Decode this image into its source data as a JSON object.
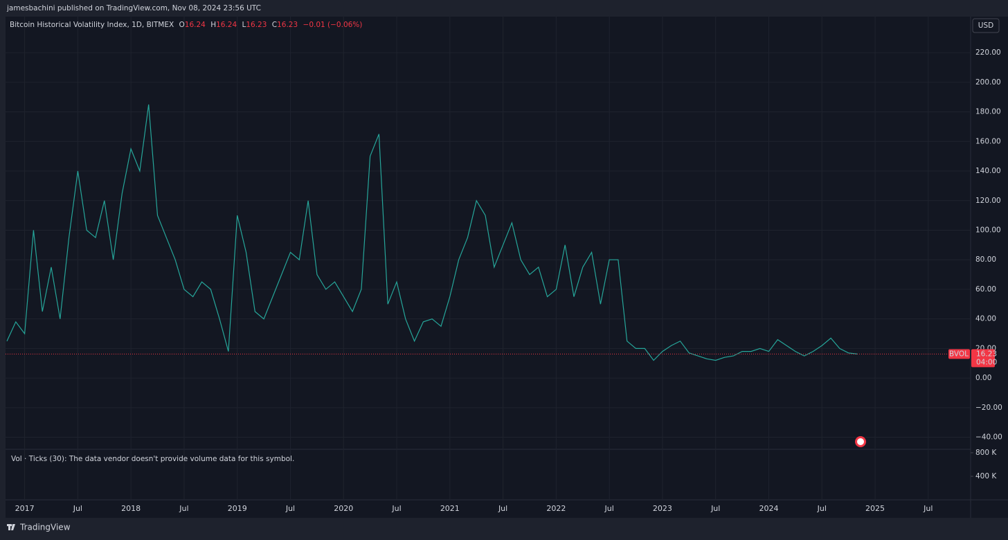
{
  "header": {
    "publisher": "jamesbachini published on TradingView.com, Nov 08, 2024 23:56 UTC",
    "currency_button": "USD",
    "footer_brand": "TradingView"
  },
  "legend": {
    "symbol": "Bitcoin Historical Volatility Index, 1D, BITMEX",
    "open_label": "O",
    "open": 16.24,
    "high_label": "H",
    "high": 16.24,
    "low_label": "L",
    "low": 16.23,
    "close_label": "C",
    "close": 16.23,
    "change": "−0.01 (−0.06%)"
  },
  "chart_data": {
    "type": "line",
    "x": [
      "2016-11",
      "2016-12",
      "2017-01",
      "2017-02",
      "2017-03",
      "2017-04",
      "2017-05",
      "2017-06",
      "2017-07",
      "2017-08",
      "2017-09",
      "2017-10",
      "2017-11",
      "2017-12",
      "2018-01",
      "2018-02",
      "2018-03",
      "2018-04",
      "2018-05",
      "2018-06",
      "2018-07",
      "2018-08",
      "2018-09",
      "2018-10",
      "2018-11",
      "2018-12",
      "2019-01",
      "2019-02",
      "2019-03",
      "2019-04",
      "2019-05",
      "2019-06",
      "2019-07",
      "2019-08",
      "2019-09",
      "2019-10",
      "2019-11",
      "2019-12",
      "2020-01",
      "2020-02",
      "2020-03",
      "2020-04",
      "2020-05",
      "2020-06",
      "2020-07",
      "2020-08",
      "2020-09",
      "2020-10",
      "2020-11",
      "2020-12",
      "2021-01",
      "2021-02",
      "2021-03",
      "2021-04",
      "2021-05",
      "2021-06",
      "2021-07",
      "2021-08",
      "2021-09",
      "2021-10",
      "2021-11",
      "2021-12",
      "2022-01",
      "2022-02",
      "2022-03",
      "2022-04",
      "2022-05",
      "2022-06",
      "2022-07",
      "2022-08",
      "2022-09",
      "2022-10",
      "2022-11",
      "2022-12",
      "2023-01",
      "2023-02",
      "2023-03",
      "2023-04",
      "2023-05",
      "2023-06",
      "2023-07",
      "2023-08",
      "2023-09",
      "2023-10",
      "2023-11",
      "2023-12",
      "2024-01",
      "2024-02",
      "2024-03",
      "2024-04",
      "2024-05",
      "2024-06",
      "2024-07",
      "2024-08",
      "2024-09",
      "2024-10",
      "2024-11"
    ],
    "series": [
      {
        "name": "BVOL",
        "color": "#26a69a",
        "values": [
          25,
          38,
          30,
          100,
          45,
          75,
          40,
          95,
          140,
          100,
          95,
          120,
          80,
          125,
          155,
          140,
          185,
          110,
          95,
          80,
          60,
          55,
          65,
          60,
          40,
          18,
          110,
          85,
          45,
          40,
          55,
          70,
          85,
          80,
          120,
          70,
          60,
          65,
          55,
          45,
          60,
          150,
          165,
          50,
          65,
          40,
          25,
          38,
          40,
          35,
          55,
          80,
          95,
          120,
          110,
          75,
          90,
          105,
          80,
          70,
          75,
          55,
          60,
          90,
          55,
          75,
          85,
          50,
          80,
          80,
          25,
          20,
          20,
          12,
          18,
          22,
          25,
          17,
          15,
          13,
          12,
          14,
          15,
          18,
          18,
          20,
          18,
          26,
          22,
          18,
          15,
          18,
          22,
          27,
          20,
          17,
          16.23
        ]
      }
    ],
    "xlim": [
      "2016-11",
      "2025-11"
    ],
    "xticks": [
      {
        "value": "2017-01",
        "label": "2017"
      },
      {
        "value": "2017-07",
        "label": "Jul"
      },
      {
        "value": "2018-01",
        "label": "2018"
      },
      {
        "value": "2018-07",
        "label": "Jul"
      },
      {
        "value": "2019-01",
        "label": "2019"
      },
      {
        "value": "2019-07",
        "label": "Jul"
      },
      {
        "value": "2020-01",
        "label": "2020"
      },
      {
        "value": "2020-07",
        "label": "Jul"
      },
      {
        "value": "2021-01",
        "label": "2021"
      },
      {
        "value": "2021-07",
        "label": "Jul"
      },
      {
        "value": "2022-01",
        "label": "2022"
      },
      {
        "value": "2022-07",
        "label": "Jul"
      },
      {
        "value": "2023-01",
        "label": "2023"
      },
      {
        "value": "2023-07",
        "label": "Jul"
      },
      {
        "value": "2024-01",
        "label": "2024"
      },
      {
        "value": "2024-07",
        "label": "Jul"
      },
      {
        "value": "2025-01",
        "label": "2025"
      },
      {
        "value": "2025-07",
        "label": "Jul"
      }
    ],
    "ylim": [
      -47.7,
      244.4
    ],
    "yticks": [
      {
        "value": -40,
        "label": "−40.00"
      },
      {
        "value": -20,
        "label": "−20.00"
      },
      {
        "value": 0,
        "label": "0.00"
      },
      {
        "value": 20,
        "label": "20.00"
      },
      {
        "value": 40,
        "label": "40.00"
      },
      {
        "value": 60,
        "label": "60.00"
      },
      {
        "value": 80,
        "label": "80.00"
      },
      {
        "value": 100,
        "label": "100.00"
      },
      {
        "value": 120,
        "label": "120.00"
      },
      {
        "value": 140,
        "label": "140.00"
      },
      {
        "value": 160,
        "label": "160.00"
      },
      {
        "value": 180,
        "label": "180.00"
      },
      {
        "value": 200,
        "label": "200.00"
      },
      {
        "value": 220,
        "label": "220.00"
      }
    ],
    "grid": true,
    "last_price": {
      "symbol": "BVOL",
      "value": 16.23,
      "countdown": "04:00",
      "color": "#f23645"
    }
  },
  "volume": {
    "note": "Vol · Ticks (30): The data vendor doesn't provide volume data for this symbol.",
    "ylim": [
      0,
      847000
    ],
    "yticks": [
      {
        "value": 800000,
        "label": "800 K"
      },
      {
        "value": 400000,
        "label": "400 K"
      }
    ]
  }
}
